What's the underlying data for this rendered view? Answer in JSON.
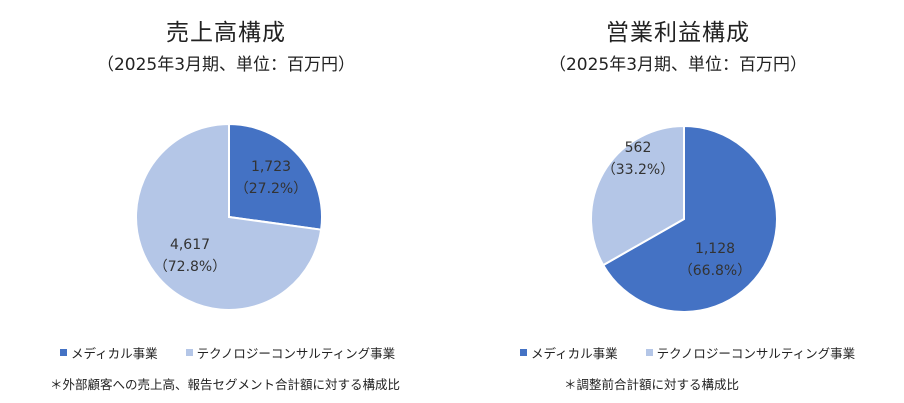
{
  "colors": {
    "medical": "#4472C4",
    "tech": "#B4C6E7"
  },
  "chart_data": [
    {
      "type": "pie",
      "title": "売上高構成",
      "subtitle": "（2025年3月期、単位：百万円）",
      "slices": [
        {
          "name": "メディカル事業",
          "value": 1723,
          "value_label": "1,723",
          "pct_label": "（27.2%）",
          "color": "#4472C4"
        },
        {
          "name": "テクノロジーコンサルティング事業",
          "value": 4617,
          "value_label": "4,617",
          "pct_label": "（72.8%）",
          "color": "#B4C6E7"
        }
      ],
      "legend": [
        "メディカル事業",
        "テクノロジーコンサルティング事業"
      ],
      "note": "＊外部顧客への売上高、報告セグメント合計額に対する構成比"
    },
    {
      "type": "pie",
      "title": "営業利益構成",
      "subtitle": "（2025年3月期、単位：百万円）",
      "slices": [
        {
          "name": "メディカル事業",
          "value": 1128,
          "value_label": "1,128",
          "pct_label": "（66.8%）",
          "color": "#4472C4"
        },
        {
          "name": "テクノロジーコンサルティング事業",
          "value": 562,
          "value_label": "562",
          "pct_label": "（33.2%）",
          "color": "#B4C6E7"
        }
      ],
      "legend": [
        "メディカル事業",
        "テクノロジーコンサルティング事業"
      ],
      "note": "＊調整前合計額に対する構成比"
    }
  ]
}
